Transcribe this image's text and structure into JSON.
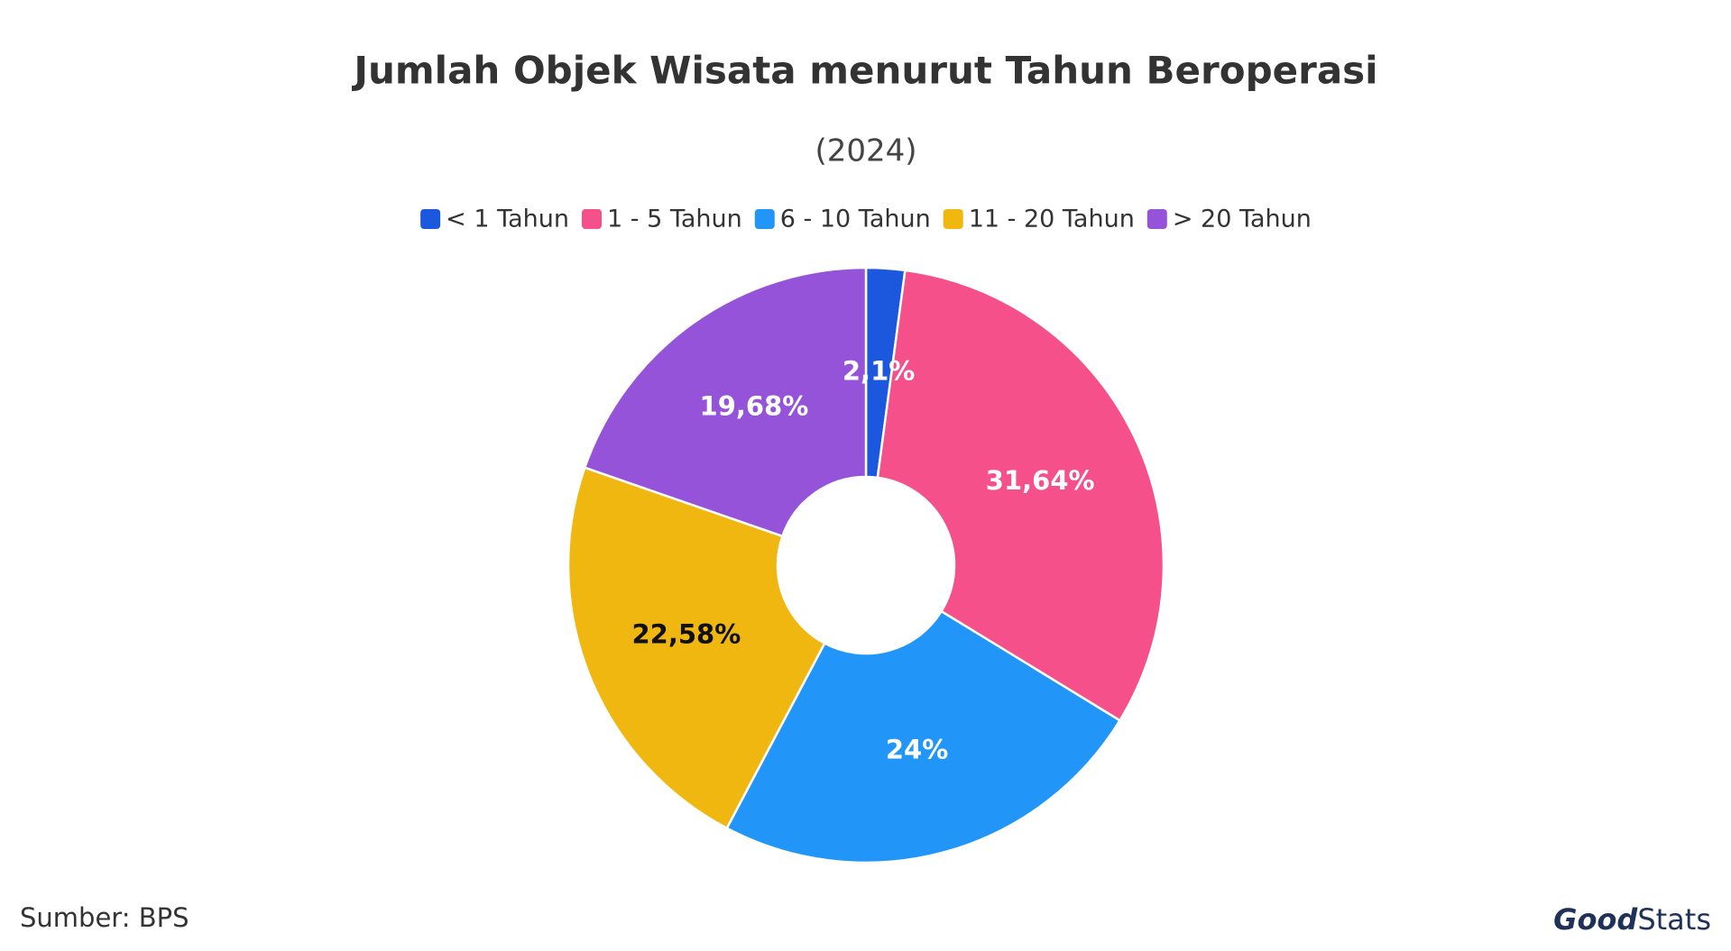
{
  "chart_data": {
    "type": "donut",
    "title": "Jumlah Objek Wisata menurut Tahun Beroperasi",
    "subtitle": "(2024)",
    "categories": [
      "< 1 Tahun",
      "1 - 5 Tahun",
      "6 - 10 Tahun",
      "11 - 20 Tahun",
      "> 20 Tahun"
    ],
    "values": [
      2.1,
      31.64,
      24,
      22.58,
      19.68
    ],
    "value_labels": [
      "2,1%",
      "31,64%",
      "24%",
      "22,58%",
      "19,68%"
    ],
    "colors": [
      "#1b58de",
      "#f5508a",
      "#2196f8",
      "#f0b711",
      "#9553d9"
    ],
    "legend": "top",
    "source": "Sumber: BPS"
  },
  "logo": {
    "bold": "Good",
    "light": "Stats"
  }
}
